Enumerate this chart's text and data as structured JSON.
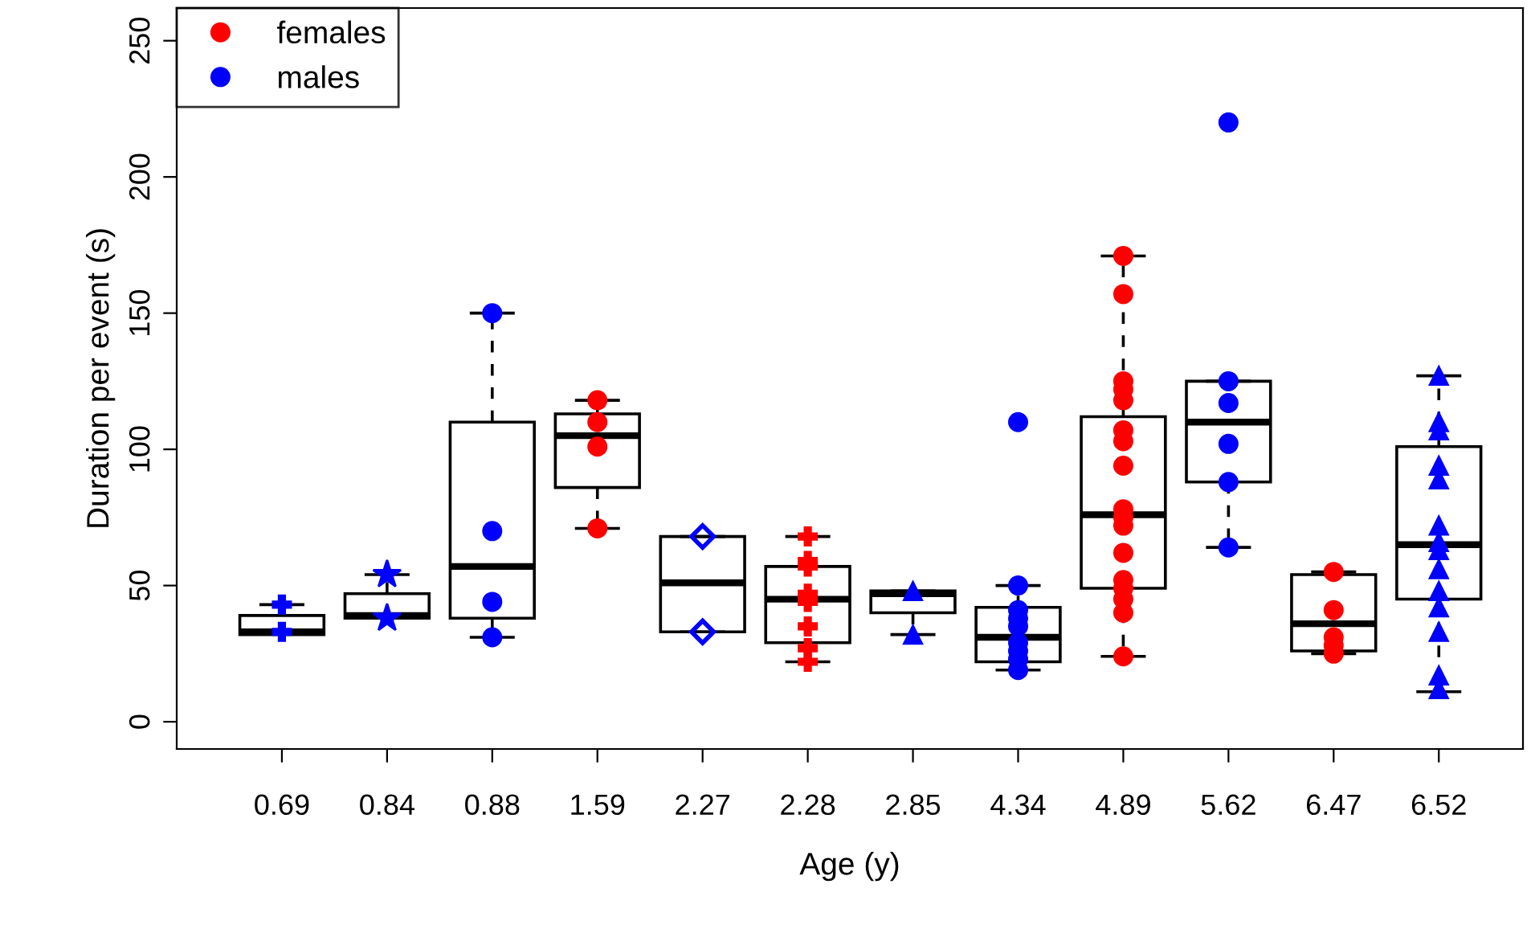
{
  "chart_data": {
    "type": "box",
    "xlabel": "Age (y)",
    "ylabel": "Duration per event (s)",
    "categories": [
      "0.69",
      "0.84",
      "0.88",
      "1.59",
      "2.27",
      "2.28",
      "2.85",
      "4.34",
      "4.89",
      "5.62",
      "6.47",
      "6.52"
    ],
    "boxes": [
      {
        "low": 33,
        "q1": 32,
        "median": 33,
        "q3": 39,
        "high": 43
      },
      {
        "low": 38,
        "q1": 38,
        "median": 39,
        "q3": 47,
        "high": 54
      },
      {
        "low": 31,
        "q1": 38,
        "median": 57,
        "q3": 110,
        "high": 150
      },
      {
        "low": 71,
        "q1": 86,
        "median": 105,
        "q3": 113,
        "high": 118
      },
      {
        "low": 33,
        "q1": 33,
        "median": 51,
        "q3": 68,
        "high": 68
      },
      {
        "low": 22,
        "q1": 29,
        "median": 45,
        "q3": 57,
        "high": 68
      },
      {
        "low": 32,
        "q1": 40,
        "median": 47,
        "q3": 48,
        "high": 48
      },
      {
        "low": 19,
        "q1": 22,
        "median": 31,
        "q3": 42,
        "high": 50
      },
      {
        "low": 24,
        "q1": 49,
        "median": 76,
        "q3": 112,
        "high": 171
      },
      {
        "low": 64,
        "q1": 88,
        "median": 110,
        "q3": 125,
        "high": 125
      },
      {
        "low": 25,
        "q1": 26,
        "median": 36,
        "q3": 54,
        "high": 55
      },
      {
        "low": 11,
        "q1": 45,
        "median": 65,
        "q3": 101,
        "high": 127
      }
    ],
    "series": [
      {
        "name": "females",
        "type": "scatter",
        "marker": "circle",
        "color": "#ff0000",
        "x": [
          "1.59",
          "1.59",
          "1.59",
          "1.59",
          "4.89",
          "4.89",
          "4.89",
          "4.89",
          "4.89",
          "4.89",
          "4.89",
          "4.89",
          "4.89",
          "4.89",
          "4.89",
          "4.89",
          "4.89",
          "4.89",
          "4.89",
          "4.89",
          "4.89",
          "6.47",
          "6.47",
          "6.47",
          "6.47",
          "6.47"
        ],
        "values": [
          118,
          110,
          101,
          71,
          171,
          157,
          125,
          122,
          118,
          107,
          103,
          94,
          78,
          75,
          72,
          62,
          52,
          49,
          45,
          40,
          24,
          55,
          41,
          31,
          28,
          25
        ]
      },
      {
        "name": "males",
        "type": "scatter",
        "marker": "circle",
        "color": "#0000ff",
        "x": [
          "0.88",
          "0.88",
          "0.88",
          "0.88",
          "4.34",
          "4.34",
          "4.34",
          "4.34",
          "4.34",
          "4.34",
          "4.34",
          "4.34",
          "4.34",
          "5.62",
          "5.62",
          "5.62",
          "5.62",
          "5.62",
          "5.62"
        ],
        "values": [
          150,
          70,
          44,
          31,
          110,
          50,
          41,
          38,
          35,
          29,
          26,
          23,
          19,
          220,
          125,
          117,
          102,
          88,
          64
        ]
      },
      {
        "type": "scatter",
        "marker": "cross",
        "color": "#0000ff",
        "x": [
          "0.69",
          "0.69"
        ],
        "values": [
          43,
          33
        ]
      },
      {
        "type": "scatter",
        "marker": "star",
        "color": "#0000ff",
        "x": [
          "0.84",
          "0.84"
        ],
        "values": [
          54,
          38
        ]
      },
      {
        "type": "scatter",
        "marker": "diamond",
        "color": "#0000ff",
        "x": [
          "2.27",
          "2.27"
        ],
        "values": [
          68,
          33
        ]
      },
      {
        "type": "scatter",
        "marker": "cross",
        "color": "#ff0000",
        "x": [
          "2.28",
          "2.28",
          "2.28",
          "2.28",
          "2.28",
          "2.28",
          "2.28",
          "2.28"
        ],
        "values": [
          68,
          59,
          57,
          47,
          44,
          35,
          27,
          22
        ]
      },
      {
        "type": "scatter",
        "marker": "triangle",
        "color": "#0000ff",
        "x": [
          "2.85",
          "2.85",
          "6.52",
          "6.52",
          "6.52",
          "6.52",
          "6.52",
          "6.52",
          "6.52",
          "6.52",
          "6.52",
          "6.52",
          "6.52",
          "6.52",
          "6.52",
          "6.52"
        ],
        "values": [
          48,
          32,
          127,
          110,
          107,
          94,
          89,
          72,
          66,
          63,
          56,
          48,
          42,
          33,
          17,
          12
        ]
      }
    ],
    "ylim": [
      -10,
      262
    ],
    "yticks": [
      0,
      50,
      100,
      150,
      200,
      250
    ],
    "grid": false,
    "legend": "top left"
  }
}
